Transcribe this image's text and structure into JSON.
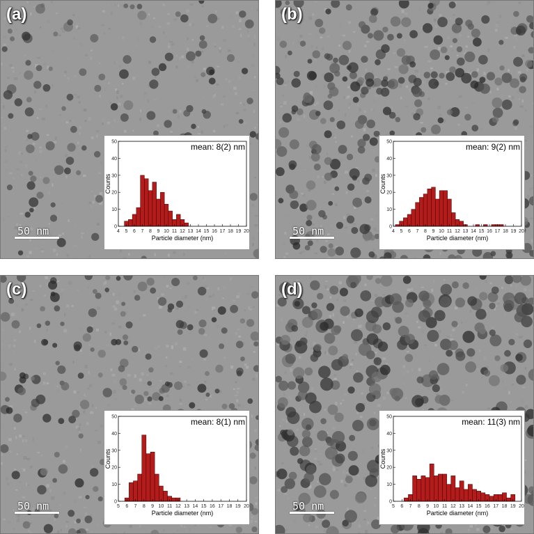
{
  "panels": [
    {
      "label": "(a)",
      "scale_text": "50 nm",
      "mean_text": "mean: 8(2) nm",
      "particle_density": 0.35,
      "particle_size": 1.0
    },
    {
      "label": "(b)",
      "scale_text": "50 nm",
      "mean_text": "mean: 9(2) nm",
      "particle_density": 0.9,
      "particle_size": 1.1
    },
    {
      "label": "(c)",
      "scale_text": "50 nm",
      "mean_text": "mean: 8(1) nm",
      "particle_density": 0.55,
      "particle_size": 1.0
    },
    {
      "label": "(d)",
      "scale_text": "50 nm",
      "mean_text": "mean: 11(3) nm",
      "particle_density": 0.95,
      "particle_size": 1.35
    }
  ],
  "chart_data": [
    {
      "type": "bar",
      "panel": "(a)",
      "xlabel": "Particle diameter (nm)",
      "ylabel": "Counts",
      "xlim": [
        4,
        20
      ],
      "ylim": [
        0,
        50
      ],
      "bin_width": 0.5,
      "x": [
        5,
        5.5,
        6,
        6.5,
        7,
        7.5,
        8,
        8.5,
        9,
        9.5,
        10,
        10.5,
        11,
        11.5,
        12,
        12.5
      ],
      "values": [
        3,
        4,
        7,
        11,
        30,
        28,
        21,
        26,
        16,
        20,
        13,
        9,
        4,
        7,
        4,
        2
      ],
      "xticks": [
        "4",
        "5",
        "6",
        "7",
        "8",
        "9",
        "10",
        "11",
        "12",
        "13",
        "14",
        "15",
        "16",
        "17",
        "18",
        "19",
        "20"
      ],
      "yticks": [
        "0",
        "10",
        "20",
        "30",
        "40",
        "50"
      ]
    },
    {
      "type": "bar",
      "panel": "(b)",
      "xlabel": "Particle diameter (nm)",
      "ylabel": "Counts",
      "xlim": [
        4,
        20
      ],
      "ylim": [
        0,
        50
      ],
      "bin_width": 0.5,
      "x": [
        4.5,
        5,
        5.5,
        6,
        6.5,
        7,
        7.5,
        8,
        8.5,
        9,
        9.5,
        10,
        10.5,
        11,
        11.5,
        12,
        12.5,
        13,
        14.5,
        15.5,
        16.5,
        17,
        17.5
      ],
      "values": [
        1,
        3,
        5,
        7,
        10,
        14,
        17,
        19,
        22,
        23,
        16,
        21,
        21,
        16,
        8,
        4,
        3,
        1,
        1,
        1,
        1,
        1,
        1
      ],
      "xticks": [
        "4",
        "5",
        "6",
        "7",
        "8",
        "9",
        "10",
        "11",
        "12",
        "13",
        "14",
        "15",
        "16",
        "17",
        "18",
        "19",
        "20"
      ],
      "yticks": [
        "0",
        "10",
        "20",
        "30",
        "40",
        "50"
      ]
    },
    {
      "type": "bar",
      "panel": "(c)",
      "xlabel": "Particle diameter (nm)",
      "ylabel": "Counts",
      "xlim": [
        5,
        20
      ],
      "ylim": [
        0,
        50
      ],
      "bin_width": 0.5,
      "x": [
        6,
        6.5,
        7,
        7.5,
        8,
        8.5,
        9,
        9.5,
        10,
        10.5,
        11,
        11.5,
        12
      ],
      "values": [
        2,
        11,
        12,
        16,
        39,
        28,
        29,
        16,
        9,
        6,
        3,
        2,
        2
      ],
      "xticks": [
        "5",
        "6",
        "7",
        "8",
        "9",
        "10",
        "11",
        "12",
        "13",
        "14",
        "15",
        "16",
        "17",
        "18",
        "19",
        "20"
      ],
      "yticks": [
        "0",
        "10",
        "20",
        "30",
        "40",
        "50"
      ]
    },
    {
      "type": "bar",
      "panel": "(d)",
      "xlabel": "Particle diameter (nm)",
      "ylabel": "Counts",
      "xlim": [
        5,
        20
      ],
      "ylim": [
        0,
        50
      ],
      "bin_width": 0.5,
      "x": [
        6.5,
        7,
        7.5,
        8,
        8.5,
        9,
        9.5,
        10,
        10.5,
        11,
        11.5,
        12,
        12.5,
        13,
        13.5,
        14,
        14.5,
        15,
        15.5,
        16,
        16.5,
        17,
        17.5,
        18,
        18.5,
        19
      ],
      "values": [
        2,
        4,
        15,
        13,
        15,
        14,
        22,
        15,
        16,
        16,
        10,
        15,
        8,
        12,
        7,
        10,
        7,
        6,
        5,
        4,
        3,
        4,
        4,
        5,
        2,
        4
      ],
      "xticks": [
        "5",
        "6",
        "7",
        "8",
        "9",
        "10",
        "11",
        "12",
        "13",
        "14",
        "15",
        "16",
        "17",
        "18",
        "19",
        "20"
      ],
      "yticks": [
        "0",
        "10",
        "20",
        "30",
        "40",
        "50"
      ]
    }
  ]
}
